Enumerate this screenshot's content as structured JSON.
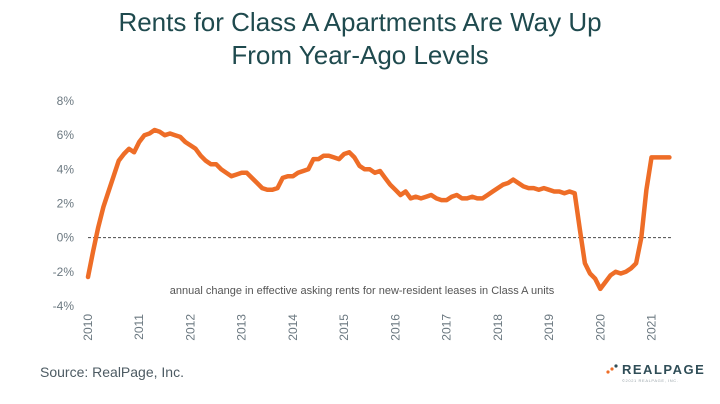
{
  "chart_data": {
    "type": "line",
    "title_line1": "Rents for Class A Apartments Are Way Up",
    "title_line2": "From Year-Ago Levels",
    "annotation": "annual change in effective asking rents for new-resident leases in Class A units",
    "ylim": [
      -4,
      8
    ],
    "y_ticks": [
      -4,
      -2,
      0,
      2,
      4,
      6,
      8
    ],
    "y_tick_labels": [
      "-4%",
      "-2%",
      "0%",
      "2%",
      "4%",
      "6%",
      "8%"
    ],
    "xlim": [
      2010,
      2021.4
    ],
    "x_ticks": [
      2010,
      2011,
      2012,
      2013,
      2014,
      2015,
      2016,
      2017,
      2018,
      2019,
      2020,
      2021
    ],
    "x_tick_labels": [
      "2010",
      "2011",
      "2012",
      "2013",
      "2014",
      "2015",
      "2016",
      "2017",
      "2018",
      "2019",
      "2020",
      "2021"
    ],
    "grid": false,
    "zero_line": "dashed",
    "series": [
      {
        "color": "#ee6d27",
        "x": [
          2010.0,
          2010.1,
          2010.2,
          2010.3,
          2010.4,
          2010.5,
          2010.6,
          2010.7,
          2010.8,
          2010.9,
          2011.0,
          2011.1,
          2011.2,
          2011.3,
          2011.4,
          2011.5,
          2011.6,
          2011.7,
          2011.8,
          2011.9,
          2012.0,
          2012.1,
          2012.2,
          2012.3,
          2012.4,
          2012.5,
          2012.6,
          2012.7,
          2012.8,
          2012.9,
          2013.0,
          2013.1,
          2013.2,
          2013.3,
          2013.4,
          2013.5,
          2013.6,
          2013.7,
          2013.8,
          2013.9,
          2014.0,
          2014.1,
          2014.2,
          2014.3,
          2014.4,
          2014.5,
          2014.6,
          2014.7,
          2014.8,
          2014.9,
          2015.0,
          2015.1,
          2015.2,
          2015.3,
          2015.4,
          2015.5,
          2015.6,
          2015.7,
          2015.8,
          2015.9,
          2016.0,
          2016.1,
          2016.2,
          2016.3,
          2016.4,
          2016.5,
          2016.6,
          2016.7,
          2016.8,
          2016.9,
          2017.0,
          2017.1,
          2017.2,
          2017.3,
          2017.4,
          2017.5,
          2017.6,
          2017.7,
          2017.8,
          2017.9,
          2018.0,
          2018.1,
          2018.2,
          2018.3,
          2018.4,
          2018.5,
          2018.6,
          2018.7,
          2018.8,
          2018.9,
          2019.0,
          2019.1,
          2019.2,
          2019.3,
          2019.4,
          2019.5,
          2019.6,
          2019.7,
          2019.8,
          2019.9,
          2020.0,
          2020.1,
          2020.2,
          2020.3,
          2020.4,
          2020.5,
          2020.6,
          2020.7,
          2020.8,
          2020.9,
          2021.0,
          2021.1,
          2021.2,
          2021.3,
          2021.35
        ],
        "values": [
          -2.3,
          -0.8,
          0.6,
          1.8,
          2.7,
          3.6,
          4.5,
          4.9,
          5.2,
          5.0,
          5.6,
          6.0,
          6.1,
          6.3,
          6.2,
          6.0,
          6.1,
          6.0,
          5.9,
          5.6,
          5.4,
          5.2,
          4.8,
          4.5,
          4.3,
          4.3,
          4.0,
          3.8,
          3.6,
          3.7,
          3.8,
          3.8,
          3.5,
          3.2,
          2.9,
          2.8,
          2.8,
          2.9,
          3.5,
          3.6,
          3.6,
          3.8,
          3.9,
          4.0,
          4.6,
          4.6,
          4.8,
          4.8,
          4.7,
          4.6,
          4.9,
          5.0,
          4.7,
          4.2,
          4.0,
          4.0,
          3.8,
          3.9,
          3.5,
          3.1,
          2.8,
          2.5,
          2.7,
          2.3,
          2.4,
          2.3,
          2.4,
          2.5,
          2.3,
          2.2,
          2.2,
          2.4,
          2.5,
          2.3,
          2.3,
          2.4,
          2.3,
          2.3,
          2.5,
          2.7,
          2.9,
          3.1,
          3.2,
          3.4,
          3.2,
          3.0,
          2.9,
          2.9,
          2.8,
          2.9,
          2.8,
          2.7,
          2.7,
          2.6,
          2.7,
          2.6,
          0.5,
          -1.5,
          -2.1,
          -2.4,
          -3.0,
          -2.6,
          -2.2,
          -2.0,
          -2.1,
          -2.0,
          -1.8,
          -1.5,
          0.0,
          2.8,
          4.7,
          4.7,
          4.7,
          4.7,
          4.7
        ]
      }
    ]
  },
  "footer": {
    "source": "Source: RealPage, Inc.",
    "logo_word": "REALPAGE",
    "logo_sub": "©2021 REALPAGE, INC."
  },
  "colors": {
    "title": "#1f4a4e",
    "line": "#ee6d27",
    "axis_text": "#6b7880",
    "logo_dots": [
      "#ee6d27",
      "#2f4d57"
    ]
  }
}
